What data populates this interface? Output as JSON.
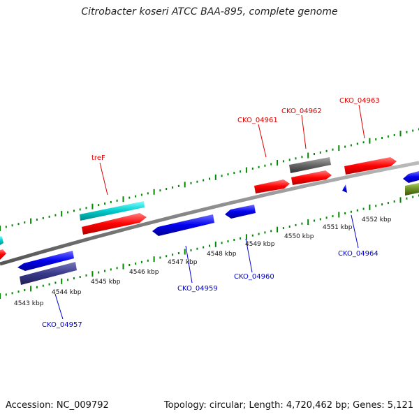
{
  "title": "Citrobacter koseri ATCC BAA-895, complete genome",
  "accession": "Accession: NC_009792",
  "summary": "Topology: circular; Length: 4,720,462 bp; Genes: 5,121",
  "colors": {
    "forward_cds": "#ff0000",
    "reverse_cds": "#0000ff",
    "rna": "#00cccc",
    "pseudo": "#666666",
    "dark_blue_feature": "#3a3a8c",
    "olive_feature": "#6b8e23",
    "backbone": "#888888",
    "ticks": "#008800"
  },
  "scale_labels": [
    "4543 kbp",
    "4544 kbp",
    "4545 kbp",
    "4546 kbp",
    "4547 kbp",
    "4548 kbp",
    "4549 kbp",
    "4550 kbp",
    "4551 kbp",
    "4552 kbp"
  ],
  "gene_labels_top": [
    "treF",
    "CKO_04961",
    "CKO_04962",
    "CKO_04963"
  ],
  "gene_labels_bottom": [
    "CKO_04957",
    "CKO_04959",
    "CKO_04960",
    "CKO_04964"
  ]
}
